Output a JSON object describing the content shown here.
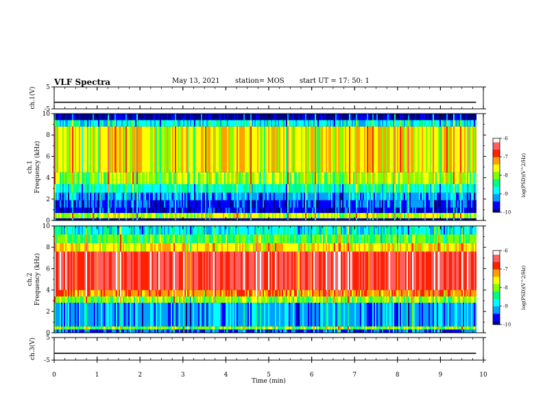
{
  "header": {
    "title": "VLF Spectra",
    "date": "May 13, 2021",
    "station": "station= MOS",
    "start": "start UT = 17: 50: 1"
  },
  "chart_data": [
    {
      "type": "line",
      "panel": "ch1-voltage",
      "ylabel": "ch.1(V)",
      "ylim": [
        -5,
        5
      ],
      "yticks": [
        "5",
        "-5"
      ],
      "series": [
        {
          "name": "",
          "x": [
            0,
            9.83
          ],
          "values": [
            -2,
            -2
          ]
        }
      ]
    },
    {
      "type": "heatmap",
      "panel": "ch1-spectrogram",
      "ylabel": "ch.1 Frequency (kHz)",
      "ylim": [
        0,
        10
      ],
      "yticks": [
        "0",
        "2",
        "4",
        "6",
        "8",
        "10"
      ],
      "data_xlim": [
        0,
        9.83
      ],
      "colorbar": {
        "label": "log(PSD)(V^2/Hz)",
        "range": [
          -10,
          -6
        ],
        "ticks": [
          "-6",
          "-7",
          "-8",
          "-9",
          "-10"
        ]
      },
      "colormap": [
        "#000080",
        "#0000ff",
        "#00a0ff",
        "#00ffff",
        "#00ff80",
        "#80ff00",
        "#ffff00",
        "#ffa000",
        "#ff2000",
        "#ff6060",
        "#ffffff"
      ],
      "bands": [
        {
          "f": [
            0,
            0.2
          ],
          "level": 0.05
        },
        {
          "f": [
            0.2,
            0.7
          ],
          "level": 0.55
        },
        {
          "f": [
            0.7,
            1.2
          ],
          "level": 0.08
        },
        {
          "f": [
            1.2,
            1.9
          ],
          "level": 0.12
        },
        {
          "f": [
            1.9,
            2.6
          ],
          "level": 0.2
        },
        {
          "f": [
            2.6,
            3.4
          ],
          "level": 0.35
        },
        {
          "f": [
            3.4,
            4.5
          ],
          "level": 0.52
        },
        {
          "f": [
            4.5,
            8.8
          ],
          "level": 0.6
        },
        {
          "f": [
            8.8,
            9.4
          ],
          "level": 0.3
        },
        {
          "f": [
            9.4,
            10
          ],
          "level": 0.03
        }
      ]
    },
    {
      "type": "heatmap",
      "panel": "ch2-spectrogram",
      "ylabel": "ch.2 Frequency (kHz)",
      "ylim": [
        0,
        10
      ],
      "yticks": [
        "0",
        "2",
        "4",
        "6",
        "8",
        "10"
      ],
      "data_xlim": [
        0,
        9.83
      ],
      "colorbar": {
        "label": "log(PSD)(V^2/Hz)",
        "range": [
          -10,
          -6
        ],
        "ticks": [
          "-6",
          "-7",
          "-8",
          "-9",
          "-10"
        ]
      },
      "colormap": [
        "#000080",
        "#0000ff",
        "#00a0ff",
        "#00ffff",
        "#00ff80",
        "#80ff00",
        "#ffff00",
        "#ffa000",
        "#ff2000",
        "#ff6060",
        "#ffffff"
      ],
      "bands": [
        {
          "f": [
            0,
            0.3
          ],
          "level": 0.15
        },
        {
          "f": [
            0.3,
            0.6
          ],
          "level": 0.5
        },
        {
          "f": [
            0.6,
            2.8
          ],
          "level": 0.2
        },
        {
          "f": [
            2.8,
            3.4
          ],
          "level": 0.5
        },
        {
          "f": [
            3.4,
            4.0
          ],
          "level": 0.72
        },
        {
          "f": [
            4.0,
            7.6
          ],
          "level": 0.86
        },
        {
          "f": [
            7.6,
            8.4
          ],
          "level": 0.62
        },
        {
          "f": [
            8.4,
            9.2
          ],
          "level": 0.45
        },
        {
          "f": [
            9.2,
            10
          ],
          "level": 0.3
        }
      ]
    },
    {
      "type": "line",
      "panel": "ch3-voltage",
      "ylabel": "ch.3(V)",
      "ylim": [
        -5,
        5
      ],
      "yticks": [
        "5",
        "-5"
      ],
      "series": [
        {
          "name": "",
          "x": [
            0,
            9.83
          ],
          "values": [
            -2,
            -2
          ]
        }
      ]
    }
  ],
  "xaxis": {
    "label": "Time (min)",
    "xlim": [
      0,
      10
    ],
    "ticks": [
      "0",
      "1",
      "2",
      "3",
      "4",
      "5",
      "6",
      "7",
      "8",
      "9",
      "10"
    ]
  }
}
